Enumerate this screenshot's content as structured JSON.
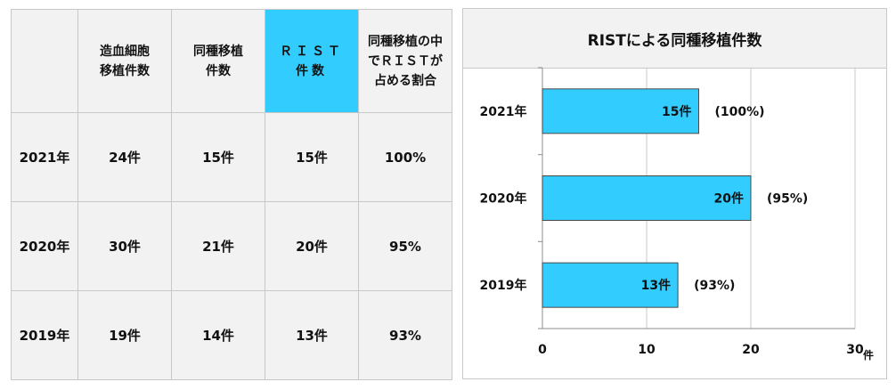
{
  "table": {
    "headers": [
      "",
      "造血細胞\n移植件数",
      "同種移植\n件数",
      "ＲＩＳＴ\n件数",
      "同種移植の中\nでＲＩＳＴが\n占める割合"
    ],
    "rows": [
      [
        "2021年",
        "24件",
        "15件",
        "15件",
        "100%"
      ],
      [
        "2020年",
        "30件",
        "21件",
        "20件",
        "95%"
      ],
      [
        "2019年",
        "19件",
        "14件",
        "13件",
        "93%"
      ]
    ],
    "highlight_color": "#33ccff"
  },
  "chart_data": {
    "type": "bar",
    "orientation": "horizontal",
    "title": "RISTによる同種移植件数",
    "categories": [
      "2021年",
      "2020年",
      "2019年"
    ],
    "values": [
      15,
      20,
      13
    ],
    "value_labels": [
      "15件",
      "20件",
      "13件"
    ],
    "annotations": [
      "(100%)",
      "(95%)",
      "(93%)"
    ],
    "xticks": [
      "0",
      "10",
      "20",
      "30"
    ],
    "xunit": "件",
    "xlim": [
      0,
      30
    ],
    "grid": true,
    "bar_color": "#33ccff"
  }
}
